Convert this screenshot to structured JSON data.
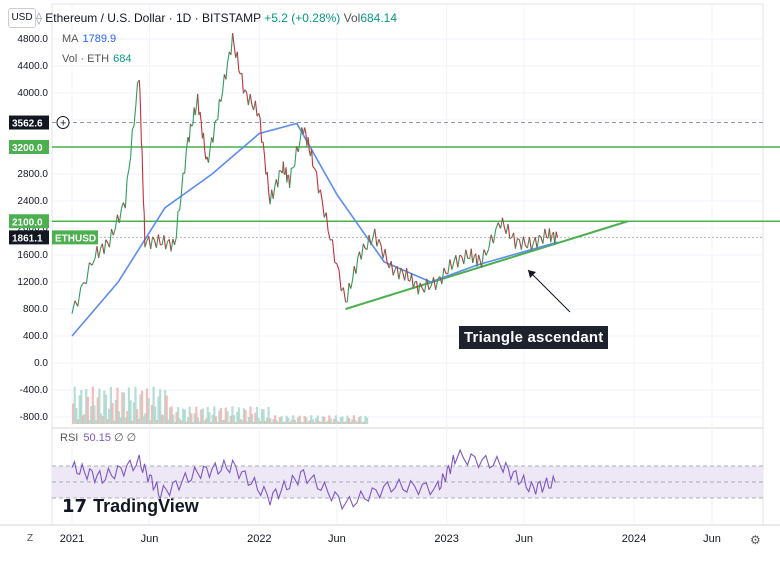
{
  "header": {
    "currency": "USD",
    "title": "Ethereum / U.S. Dollar · 1D · BITSTAMP",
    "change": "+5.2 (+0.28%)",
    "volume_label": "Vol",
    "volume_value": "684.14"
  },
  "indicators": {
    "ma_label": "MA",
    "ma_value": "1789.9",
    "vol_label": "Vol · ETH",
    "vol_value": "684",
    "rsi_label": "RSI",
    "rsi_value": "50.15",
    "rsi_extra": "∅ ∅"
  },
  "price_tags": {
    "crosshair": "3562.6",
    "level_3200": "3200.0",
    "level_2100": "2100.0",
    "last_price": "1861.1",
    "last_symbol": "ETHUSD"
  },
  "annotation": "Triangle ascendant",
  "logo_text": "TradingView",
  "z_label": "Z",
  "colors": {
    "up": "#089981",
    "down": "#f23645",
    "ma": "#5b8def",
    "level": "#4caf50",
    "rsi": "#7e57c2",
    "rsi_band": "#ede7f6",
    "tag_dark": "#131722"
  },
  "chart_data": {
    "type": "line",
    "x_axis_ticks": [
      "2021",
      "Jun",
      "2022",
      "Jun",
      "2023",
      "Jun",
      "2024",
      "Jun"
    ],
    "y_axis_ticks": [
      "4800.0",
      "4400.0",
      "4000.0",
      "3600.0",
      "3200.0",
      "2800.0",
      "2400.0",
      "2000.0",
      "1600.0",
      "1200.0",
      "800.0",
      "400.0",
      "0.0",
      "-400.0",
      "-800.0"
    ],
    "ylim": [
      -800,
      4800
    ],
    "price_series": {
      "dates": [
        "2021-01-01",
        "2021-02-15",
        "2021-03-15",
        "2021-04-15",
        "2021-05-12",
        "2021-05-23",
        "2021-06-22",
        "2021-07-20",
        "2021-08-15",
        "2021-09-03",
        "2021-09-21",
        "2021-10-15",
        "2021-11-10",
        "2021-12-04",
        "2021-12-31",
        "2022-01-22",
        "2022-02-15",
        "2022-03-01",
        "2022-03-28",
        "2022-04-15",
        "2022-05-15",
        "2022-06-18",
        "2022-07-15",
        "2022-08-14",
        "2022-09-15",
        "2022-10-15",
        "2022-11-10",
        "2022-12-15",
        "2023-01-15",
        "2023-02-15",
        "2023-03-10",
        "2023-04-16",
        "2023-05-15",
        "2023-06-15",
        "2023-07-15",
        "2023-08-05"
      ],
      "values": [
        730,
        1600,
        1800,
        2400,
        4300,
        1800,
        1800,
        1750,
        3300,
        3900,
        2950,
        3800,
        4800,
        4000,
        3700,
        2400,
        2900,
        2700,
        3500,
        3000,
        2000,
        900,
        1600,
        1900,
        1400,
        1300,
        1100,
        1200,
        1500,
        1600,
        1500,
        2100,
        1800,
        1750,
        1900,
        1860
      ]
    },
    "ma_series": {
      "dates": [
        "2021-01-01",
        "2021-04-01",
        "2021-07-01",
        "2021-10-01",
        "2022-01-01",
        "2022-03-15",
        "2022-06-01",
        "2022-09-01",
        "2022-12-01",
        "2023-03-01",
        "2023-06-01",
        "2023-08-05"
      ],
      "values": [
        400,
        1200,
        2300,
        2800,
        3400,
        3550,
        2500,
        1500,
        1200,
        1450,
        1650,
        1790
      ]
    },
    "horizontal_levels": [
      3200,
      2100
    ],
    "crosshair_value": 3562.6,
    "last_value": 1861.1,
    "trendline": {
      "start": [
        "2022-06-18",
        800
      ],
      "end": [
        "2023-12-20",
        2100
      ]
    },
    "rsi": {
      "upper_band": 70,
      "lower_band": 30,
      "mid": 50,
      "dates": [
        "2021-01-01",
        "2021-03-01",
        "2021-05-12",
        "2021-06-22",
        "2021-09-03",
        "2021-11-10",
        "2022-01-22",
        "2022-03-28",
        "2022-06-18",
        "2022-09-15",
        "2022-12-15",
        "2023-01-20",
        "2023-04-16",
        "2023-06-15",
        "2023-08-05"
      ],
      "values": [
        68,
        55,
        75,
        35,
        62,
        70,
        30,
        60,
        22,
        45,
        42,
        82,
        72,
        42,
        50
      ]
    }
  }
}
